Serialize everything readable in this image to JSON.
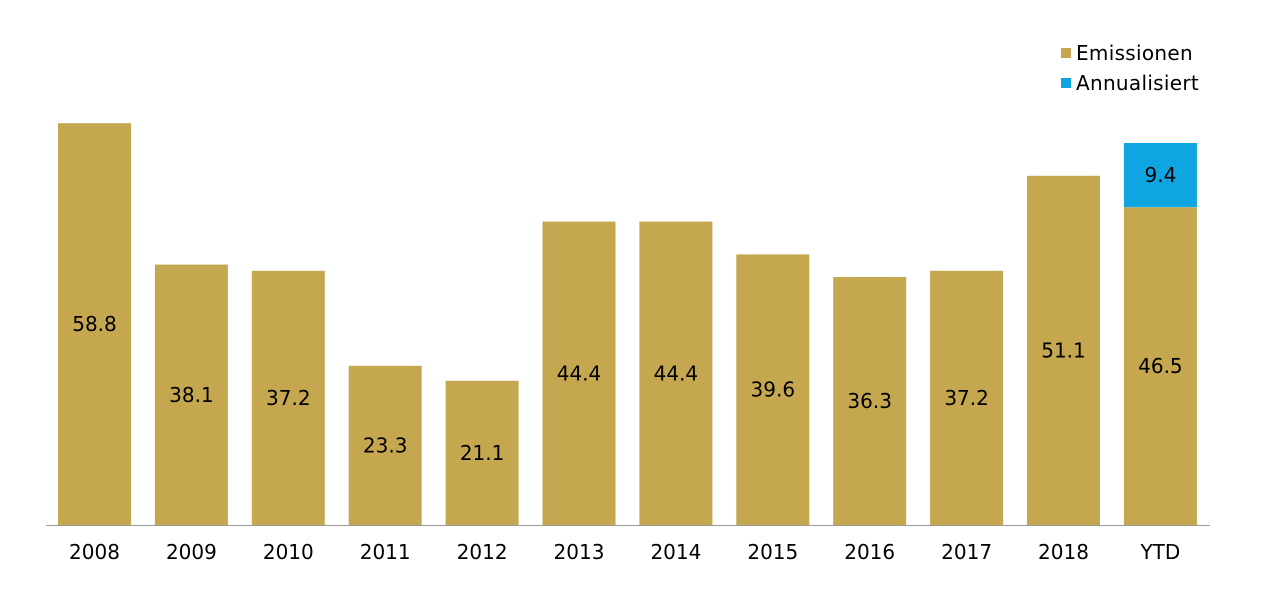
{
  "chart_data": {
    "type": "bar",
    "stacked": true,
    "categories": [
      "2008",
      "2009",
      "2010",
      "2011",
      "2012",
      "2013",
      "2014",
      "2015",
      "2016",
      "2017",
      "2018",
      "YTD"
    ],
    "series": [
      {
        "name": "Emissionen",
        "color": "#c4a74f",
        "values": [
          58.8,
          38.1,
          37.2,
          23.3,
          21.1,
          44.4,
          44.4,
          39.6,
          36.3,
          37.2,
          51.1,
          46.5
        ]
      },
      {
        "name": "Annualisiert",
        "color": "#0ea5e0",
        "values": [
          0,
          0,
          0,
          0,
          0,
          0,
          0,
          0,
          0,
          0,
          0,
          9.4
        ]
      }
    ],
    "ylim": [
      0,
      60
    ],
    "y_axis_shown": false,
    "grid": false,
    "legend_position": "top-right",
    "title": "",
    "xlabel": "",
    "ylabel": ""
  }
}
